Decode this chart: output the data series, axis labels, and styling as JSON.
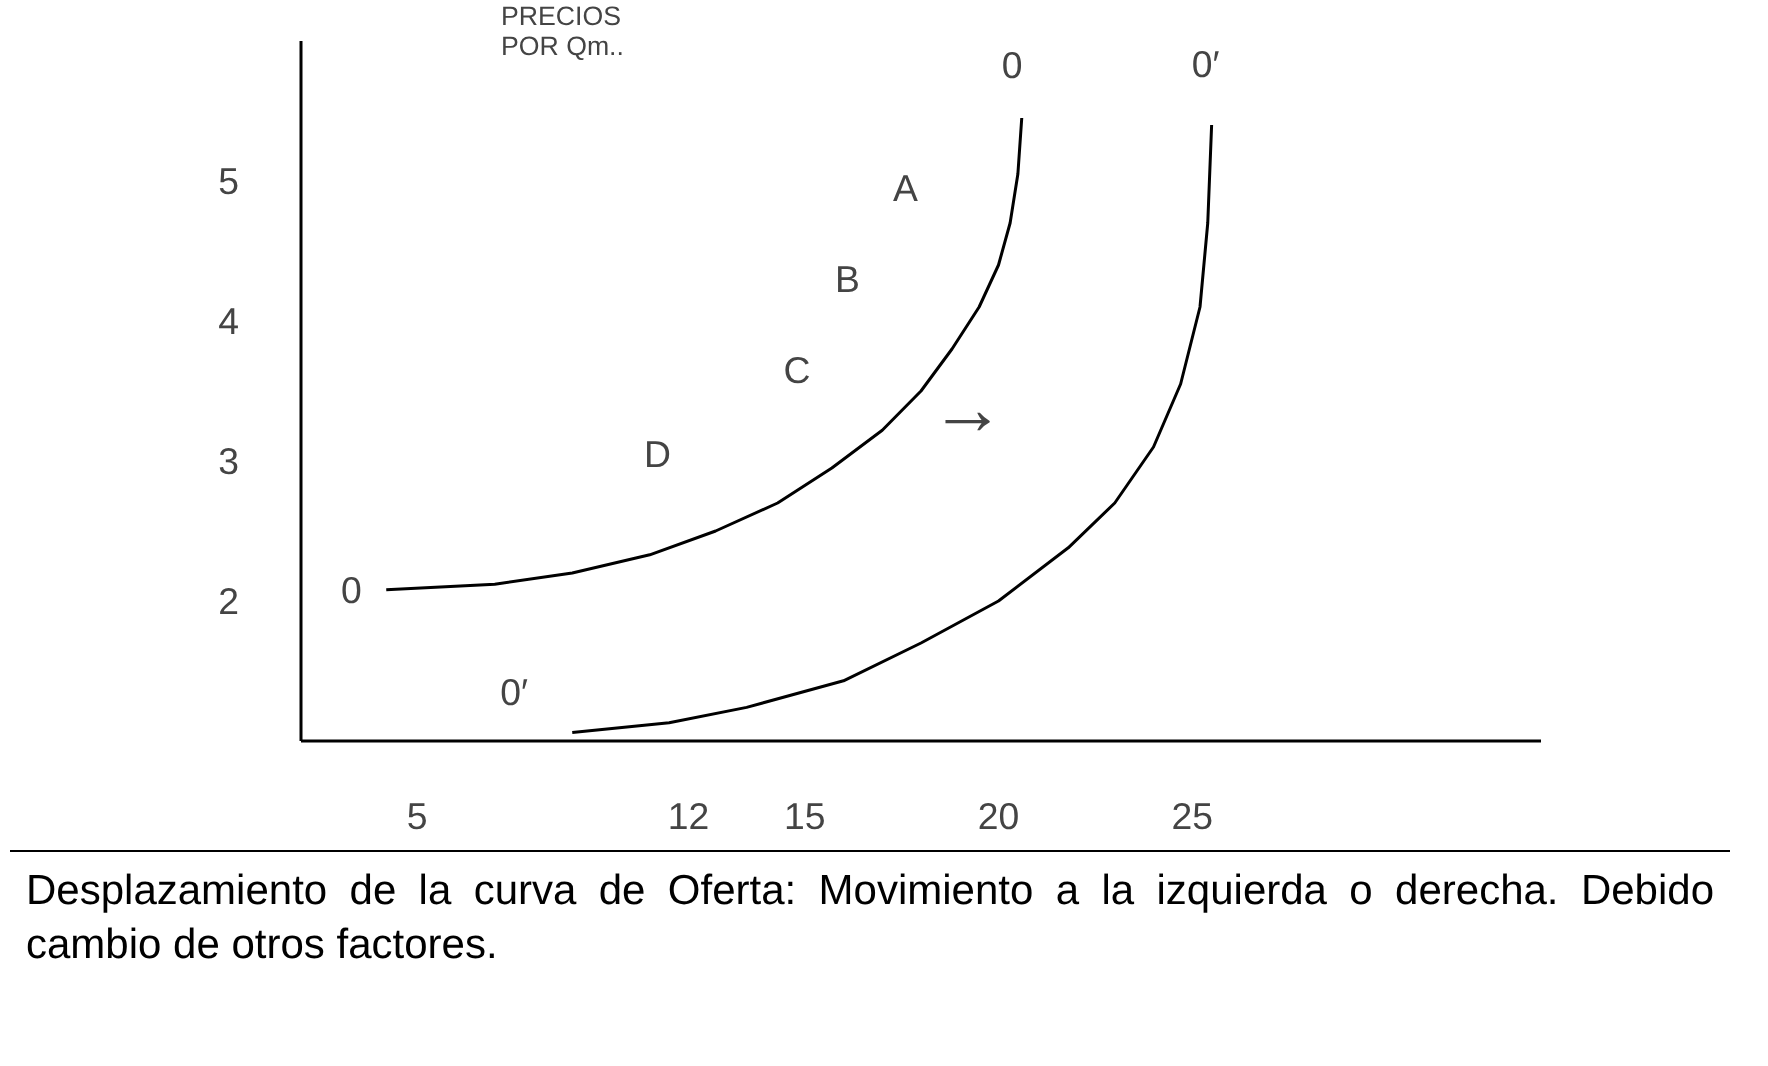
{
  "chart_data": {
    "type": "line",
    "ylabel": "PRECIOS\nPOR   Qm..",
    "xlim": [
      2,
      34
    ],
    "ylim": [
      1,
      6
    ],
    "xticks": [
      5,
      12,
      15,
      20,
      25
    ],
    "yticks": [
      2,
      3,
      4,
      5
    ],
    "grid": false,
    "marker": "none",
    "line_style": "solid",
    "series": [
      {
        "name": "0",
        "color": "#000000",
        "x": [
          4.2,
          7,
          9,
          11,
          12.7,
          14.3,
          15.7,
          17,
          18,
          18.8,
          19.5,
          20,
          20.3,
          20.5,
          20.6
        ],
        "values": [
          2.08,
          2.12,
          2.2,
          2.33,
          2.5,
          2.7,
          2.95,
          3.22,
          3.5,
          3.8,
          4.1,
          4.4,
          4.7,
          5.05,
          5.45
        ]
      },
      {
        "name": "0′",
        "color": "#000000",
        "x": [
          9,
          11.5,
          13.5,
          16,
          18,
          20,
          21.8,
          23,
          24,
          24.7,
          25.2,
          25.4,
          25.5
        ],
        "values": [
          1.06,
          1.13,
          1.24,
          1.43,
          1.7,
          2.0,
          2.38,
          2.7,
          3.1,
          3.55,
          4.1,
          4.7,
          5.4
        ]
      }
    ],
    "annotations": [
      "0",
      "0′",
      "A",
      "B",
      "C",
      "D",
      "→",
      "Desplazamiento de la curva de Oferta: Movimiento a la izquierda o derecha. Debido cambio de otros factores."
    ]
  }
}
